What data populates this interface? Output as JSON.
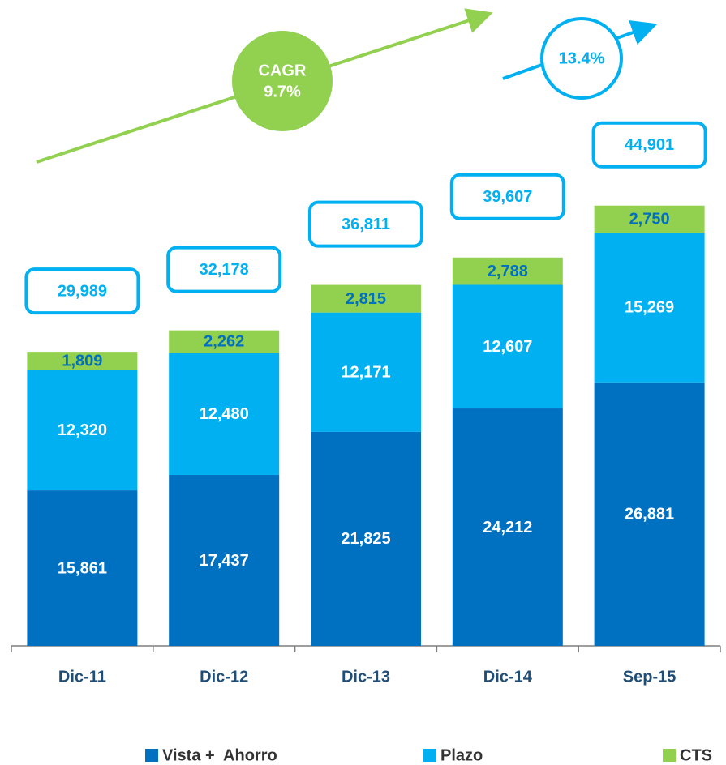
{
  "chart_data": {
    "type": "stacked_bar",
    "categories": [
      "Dic-11",
      "Dic-12",
      "Dic-13",
      "Dic-14",
      "Sep-15"
    ],
    "series": [
      {
        "name": "Vista +  Ahorro",
        "color": "#0070c0",
        "label_color": "#ffffff",
        "values": [
          15861,
          17437,
          21825,
          24212,
          26881
        ],
        "value_labels": [
          "15,861",
          "17,437",
          "21,825",
          "24,212",
          "26,881"
        ]
      },
      {
        "name": "Plazo",
        "color": "#00b0f0",
        "label_color": "#ffffff",
        "values": [
          12320,
          12480,
          12171,
          12607,
          15269
        ],
        "value_labels": [
          "12,320",
          "12,480",
          "12,171",
          "12,607",
          "15,269"
        ]
      },
      {
        "name": "CTS",
        "color": "#92d050",
        "label_color": "#0070c0",
        "values": [
          1809,
          2262,
          2815,
          2788,
          2750
        ],
        "value_labels": [
          "1,809",
          "2,262",
          "2,815",
          "2,788",
          "2,750"
        ]
      }
    ],
    "totals": {
      "values": [
        29989,
        32178,
        36811,
        39607,
        44901
      ],
      "value_labels": [
        "29,989",
        "32,178",
        "36,811",
        "39,607",
        "44,901"
      ]
    },
    "annotations": {
      "cagr_title": "CAGR",
      "cagr_value": "9.7%",
      "recent_growth": "13.4%"
    },
    "ylim": [
      0,
      50000
    ]
  }
}
